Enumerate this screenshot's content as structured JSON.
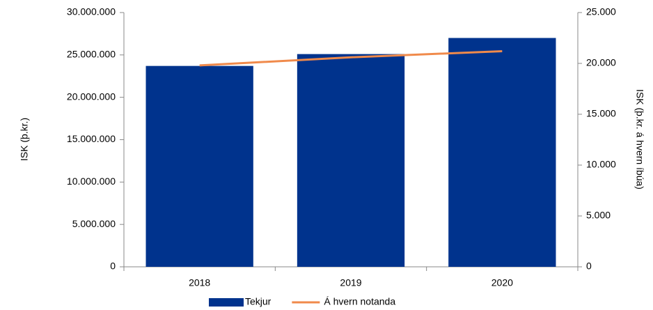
{
  "chart_data": {
    "type": "bar",
    "categories": [
      "2018",
      "2019",
      "2020"
    ],
    "series": [
      {
        "name": "Tekjur",
        "type": "bar",
        "color": "#00338d",
        "values": [
          23700000,
          25100000,
          27000000
        ]
      },
      {
        "name": "Á hvern notanda",
        "type": "line",
        "color": "#f08a4b",
        "axis": "y2",
        "values": [
          19800,
          20600,
          21200
        ]
      }
    ],
    "y_label": "ISK (þ.kr.)",
    "y2_label": "ISK (þ.kr. á hvern íbúa)",
    "ylim": [
      0,
      30000000
    ],
    "yticks": [
      0,
      {
        "value": 5000000,
        "label": "5.000.000"
      },
      {
        "value": 10000000,
        "label": "10.000.000"
      },
      {
        "value": 15000000,
        "label": "15.000.000"
      },
      {
        "value": 20000000,
        "label": "20.000.000"
      },
      {
        "value": 25000000,
        "label": "25.000.000"
      },
      {
        "value": 30000000,
        "label": "30.000.000"
      }
    ],
    "y2lim": [
      0,
      25000
    ],
    "y2ticks": [
      0,
      {
        "value": 5000,
        "label": "5.000"
      },
      {
        "value": 10000,
        "label": "10.000"
      },
      {
        "value": 15000,
        "label": "15.000"
      },
      {
        "value": 20000,
        "label": "20.000"
      },
      {
        "value": 25000,
        "label": "25.000"
      }
    ],
    "legend": "bottom"
  }
}
